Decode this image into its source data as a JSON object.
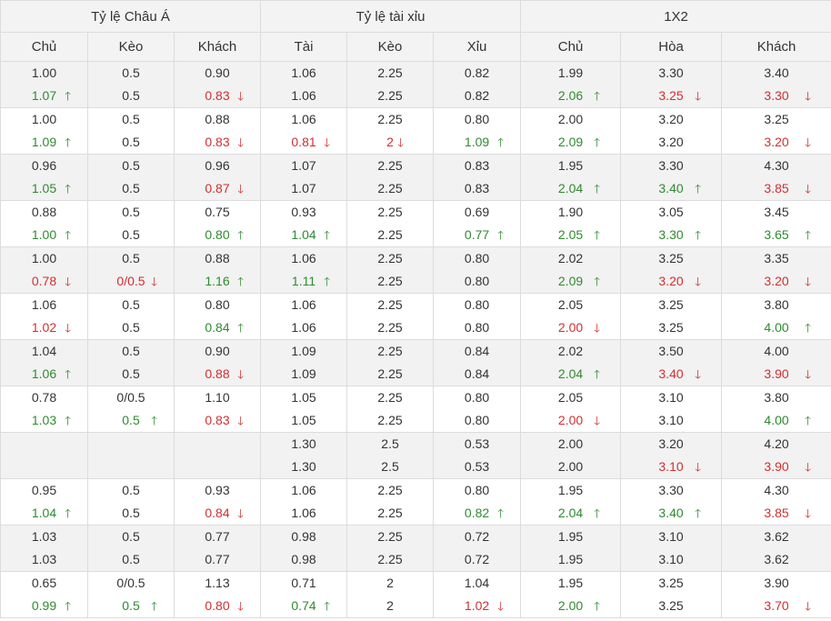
{
  "headers": {
    "groups": [
      "Tỷ lệ Châu Á",
      "Tỷ lệ tài xỉu",
      "1X2"
    ],
    "columns": [
      "Chủ",
      "Kèo",
      "Khách",
      "Tài",
      "Kèo",
      "Xỉu",
      "Chủ",
      "Hòa",
      "Khách"
    ]
  },
  "arrows": {
    "up": "🡑",
    "down": "🡓"
  },
  "colors": {
    "up": "#2e8b2e",
    "down": "#d32f2f",
    "header_bg": "#f3f3f3",
    "alt_row_bg": "#f2f2f2",
    "border": "#dcdcdc"
  },
  "rows": [
    [
      {
        "top": "1.00",
        "bottom": "1.07",
        "dir": "up"
      },
      {
        "top": "0.5",
        "bottom": "0.5",
        "dir": ""
      },
      {
        "top": "0.90",
        "bottom": "0.83",
        "dir": "down"
      },
      {
        "top": "1.06",
        "bottom": "1.06",
        "dir": ""
      },
      {
        "top": "2.25",
        "bottom": "2.25",
        "dir": ""
      },
      {
        "top": "0.82",
        "bottom": "0.82",
        "dir": ""
      },
      {
        "top": "1.99",
        "bottom": "2.06",
        "dir": "up"
      },
      {
        "top": "3.30",
        "bottom": "3.25",
        "dir": "down"
      },
      {
        "top": "3.40",
        "bottom": "3.30",
        "dir": "down"
      }
    ],
    [
      {
        "top": "1.00",
        "bottom": "1.09",
        "dir": "up"
      },
      {
        "top": "0.5",
        "bottom": "0.5",
        "dir": ""
      },
      {
        "top": "0.88",
        "bottom": "0.83",
        "dir": "down"
      },
      {
        "top": "1.06",
        "bottom": "0.81",
        "dir": "down"
      },
      {
        "top": "2.25",
        "bottom": "2",
        "dir": "down"
      },
      {
        "top": "0.80",
        "bottom": "1.09",
        "dir": "up"
      },
      {
        "top": "2.00",
        "bottom": "2.09",
        "dir": "up"
      },
      {
        "top": "3.20",
        "bottom": "3.20",
        "dir": ""
      },
      {
        "top": "3.25",
        "bottom": "3.20",
        "dir": "down"
      }
    ],
    [
      {
        "top": "0.96",
        "bottom": "1.05",
        "dir": "up"
      },
      {
        "top": "0.5",
        "bottom": "0.5",
        "dir": ""
      },
      {
        "top": "0.96",
        "bottom": "0.87",
        "dir": "down"
      },
      {
        "top": "1.07",
        "bottom": "1.07",
        "dir": ""
      },
      {
        "top": "2.25",
        "bottom": "2.25",
        "dir": ""
      },
      {
        "top": "0.83",
        "bottom": "0.83",
        "dir": ""
      },
      {
        "top": "1.95",
        "bottom": "2.04",
        "dir": "up"
      },
      {
        "top": "3.30",
        "bottom": "3.40",
        "dir": "up"
      },
      {
        "top": "4.30",
        "bottom": "3.85",
        "dir": "down"
      }
    ],
    [
      {
        "top": "0.88",
        "bottom": "1.00",
        "dir": "up"
      },
      {
        "top": "0.5",
        "bottom": "0.5",
        "dir": ""
      },
      {
        "top": "0.75",
        "bottom": "0.80",
        "dir": "up"
      },
      {
        "top": "0.93",
        "bottom": "1.04",
        "dir": "up"
      },
      {
        "top": "2.25",
        "bottom": "2.25",
        "dir": ""
      },
      {
        "top": "0.69",
        "bottom": "0.77",
        "dir": "up"
      },
      {
        "top": "1.90",
        "bottom": "2.05",
        "dir": "up"
      },
      {
        "top": "3.05",
        "bottom": "3.30",
        "dir": "up"
      },
      {
        "top": "3.45",
        "bottom": "3.65",
        "dir": "up"
      }
    ],
    [
      {
        "top": "1.00",
        "bottom": "0.78",
        "dir": "down"
      },
      {
        "top": "0.5",
        "bottom": "0/0.5",
        "dir": "down"
      },
      {
        "top": "0.88",
        "bottom": "1.16",
        "dir": "up"
      },
      {
        "top": "1.06",
        "bottom": "1.11",
        "dir": "up"
      },
      {
        "top": "2.25",
        "bottom": "2.25",
        "dir": ""
      },
      {
        "top": "0.80",
        "bottom": "0.80",
        "dir": ""
      },
      {
        "top": "2.02",
        "bottom": "2.09",
        "dir": "up"
      },
      {
        "top": "3.25",
        "bottom": "3.20",
        "dir": "down"
      },
      {
        "top": "3.35",
        "bottom": "3.20",
        "dir": "down"
      }
    ],
    [
      {
        "top": "1.06",
        "bottom": "1.02",
        "dir": "down"
      },
      {
        "top": "0.5",
        "bottom": "0.5",
        "dir": ""
      },
      {
        "top": "0.80",
        "bottom": "0.84",
        "dir": "up"
      },
      {
        "top": "1.06",
        "bottom": "1.06",
        "dir": ""
      },
      {
        "top": "2.25",
        "bottom": "2.25",
        "dir": ""
      },
      {
        "top": "0.80",
        "bottom": "0.80",
        "dir": ""
      },
      {
        "top": "2.05",
        "bottom": "2.00",
        "dir": "down"
      },
      {
        "top": "3.25",
        "bottom": "3.25",
        "dir": ""
      },
      {
        "top": "3.80",
        "bottom": "4.00",
        "dir": "up"
      }
    ],
    [
      {
        "top": "1.04",
        "bottom": "1.06",
        "dir": "up"
      },
      {
        "top": "0.5",
        "bottom": "0.5",
        "dir": ""
      },
      {
        "top": "0.90",
        "bottom": "0.88",
        "dir": "down"
      },
      {
        "top": "1.09",
        "bottom": "1.09",
        "dir": ""
      },
      {
        "top": "2.25",
        "bottom": "2.25",
        "dir": ""
      },
      {
        "top": "0.84",
        "bottom": "0.84",
        "dir": ""
      },
      {
        "top": "2.02",
        "bottom": "2.04",
        "dir": "up"
      },
      {
        "top": "3.50",
        "bottom": "3.40",
        "dir": "down"
      },
      {
        "top": "4.00",
        "bottom": "3.90",
        "dir": "down"
      }
    ],
    [
      {
        "top": "0.78",
        "bottom": "1.03",
        "dir": "up"
      },
      {
        "top": "0/0.5",
        "bottom": "0.5",
        "dir": "up"
      },
      {
        "top": "1.10",
        "bottom": "0.83",
        "dir": "down"
      },
      {
        "top": "1.05",
        "bottom": "1.05",
        "dir": ""
      },
      {
        "top": "2.25",
        "bottom": "2.25",
        "dir": ""
      },
      {
        "top": "0.80",
        "bottom": "0.80",
        "dir": ""
      },
      {
        "top": "2.05",
        "bottom": "2.00",
        "dir": "down"
      },
      {
        "top": "3.10",
        "bottom": "3.10",
        "dir": ""
      },
      {
        "top": "3.80",
        "bottom": "4.00",
        "dir": "up"
      }
    ],
    [
      {
        "top": "",
        "bottom": "",
        "dir": ""
      },
      {
        "top": "",
        "bottom": "",
        "dir": ""
      },
      {
        "top": "",
        "bottom": "",
        "dir": ""
      },
      {
        "top": "1.30",
        "bottom": "1.30",
        "dir": ""
      },
      {
        "top": "2.5",
        "bottom": "2.5",
        "dir": ""
      },
      {
        "top": "0.53",
        "bottom": "0.53",
        "dir": ""
      },
      {
        "top": "2.00",
        "bottom": "2.00",
        "dir": ""
      },
      {
        "top": "3.20",
        "bottom": "3.10",
        "dir": "down"
      },
      {
        "top": "4.20",
        "bottom": "3.90",
        "dir": "down"
      }
    ],
    [
      {
        "top": "0.95",
        "bottom": "1.04",
        "dir": "up"
      },
      {
        "top": "0.5",
        "bottom": "0.5",
        "dir": ""
      },
      {
        "top": "0.93",
        "bottom": "0.84",
        "dir": "down"
      },
      {
        "top": "1.06",
        "bottom": "1.06",
        "dir": ""
      },
      {
        "top": "2.25",
        "bottom": "2.25",
        "dir": ""
      },
      {
        "top": "0.80",
        "bottom": "0.82",
        "dir": "up"
      },
      {
        "top": "1.95",
        "bottom": "2.04",
        "dir": "up"
      },
      {
        "top": "3.30",
        "bottom": "3.40",
        "dir": "up"
      },
      {
        "top": "4.30",
        "bottom": "3.85",
        "dir": "down"
      }
    ],
    [
      {
        "top": "1.03",
        "bottom": "1.03",
        "dir": ""
      },
      {
        "top": "0.5",
        "bottom": "0.5",
        "dir": ""
      },
      {
        "top": "0.77",
        "bottom": "0.77",
        "dir": ""
      },
      {
        "top": "0.98",
        "bottom": "0.98",
        "dir": ""
      },
      {
        "top": "2.25",
        "bottom": "2.25",
        "dir": ""
      },
      {
        "top": "0.72",
        "bottom": "0.72",
        "dir": ""
      },
      {
        "top": "1.95",
        "bottom": "1.95",
        "dir": ""
      },
      {
        "top": "3.10",
        "bottom": "3.10",
        "dir": ""
      },
      {
        "top": "3.62",
        "bottom": "3.62",
        "dir": ""
      }
    ],
    [
      {
        "top": "0.65",
        "bottom": "0.99",
        "dir": "up"
      },
      {
        "top": "0/0.5",
        "bottom": "0.5",
        "dir": "up"
      },
      {
        "top": "1.13",
        "bottom": "0.80",
        "dir": "down"
      },
      {
        "top": "0.71",
        "bottom": "0.74",
        "dir": "up"
      },
      {
        "top": "2",
        "bottom": "2",
        "dir": ""
      },
      {
        "top": "1.04",
        "bottom": "1.02",
        "dir": "down"
      },
      {
        "top": "1.95",
        "bottom": "2.00",
        "dir": "up"
      },
      {
        "top": "3.25",
        "bottom": "3.25",
        "dir": ""
      },
      {
        "top": "3.90",
        "bottom": "3.70",
        "dir": "down"
      }
    ]
  ]
}
